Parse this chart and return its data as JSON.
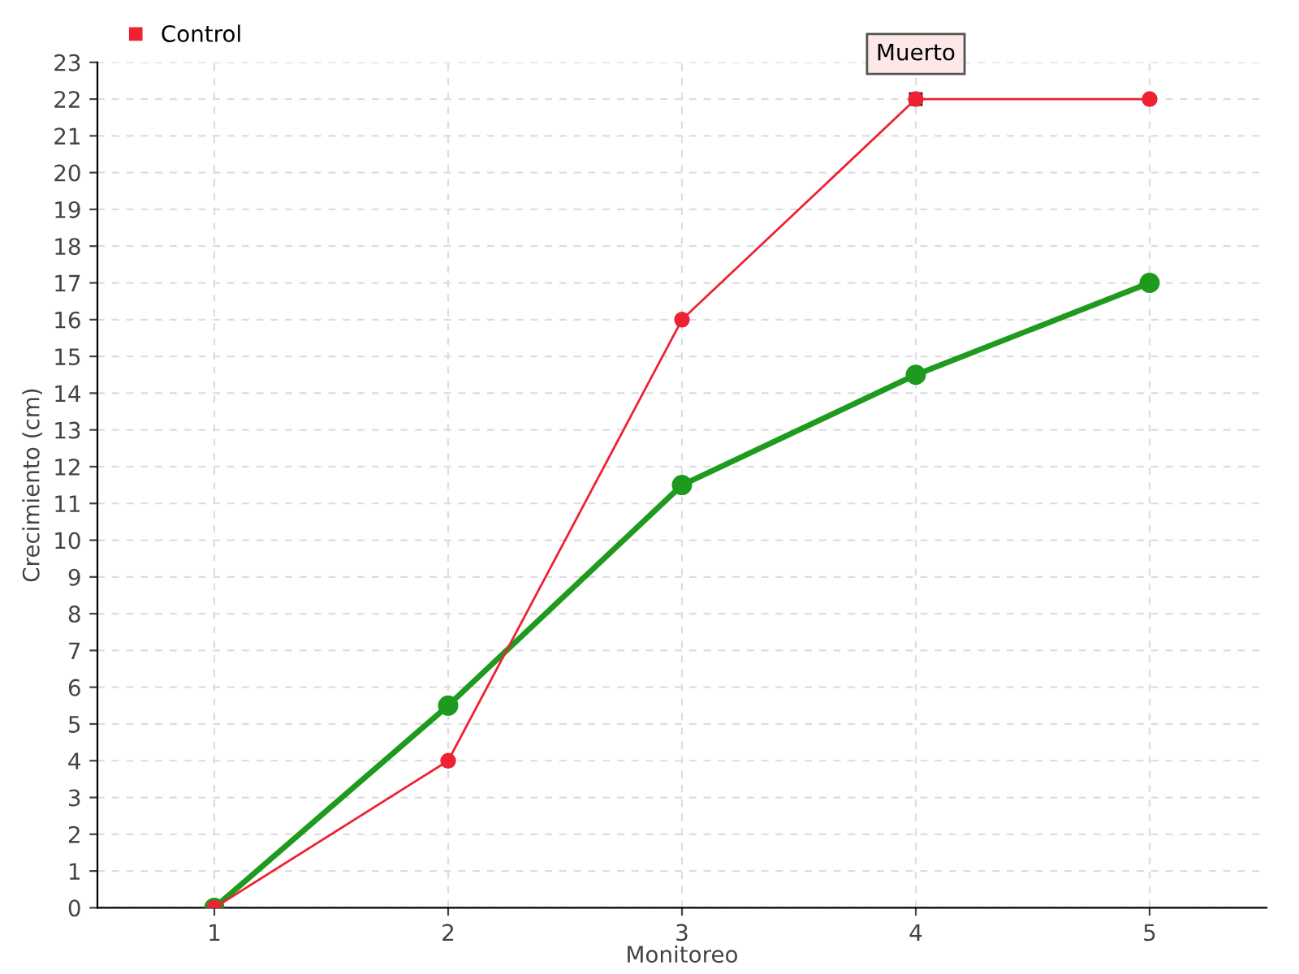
{
  "chart_data": {
    "type": "line",
    "xlabel": "Monitoreo",
    "ylabel": "Crecimiento (cm)",
    "x": [
      1,
      2,
      3,
      4,
      5
    ],
    "series": [
      {
        "color": "#1e9a1e",
        "values": [
          0,
          5.5,
          11.5,
          14.5,
          17
        ]
      },
      {
        "name": "Control",
        "color": "#ee2233",
        "values": [
          0,
          4,
          16,
          22,
          22
        ]
      }
    ],
    "xlim": [
      0.5,
      5.5
    ],
    "xticks": [
      1,
      2,
      3,
      4,
      5
    ],
    "ylim": [
      0,
      23
    ],
    "yticks": [
      0,
      1,
      2,
      3,
      4,
      5,
      6,
      7,
      8,
      9,
      10,
      11,
      12,
      13,
      14,
      15,
      16,
      17,
      18,
      19,
      20,
      21,
      22,
      23
    ],
    "annotations": [
      {
        "text": "Muerto",
        "x": 4,
        "y": 22
      }
    ],
    "grid": true,
    "legend": "top left",
    "marker": "circle",
    "line_style": "solid"
  }
}
